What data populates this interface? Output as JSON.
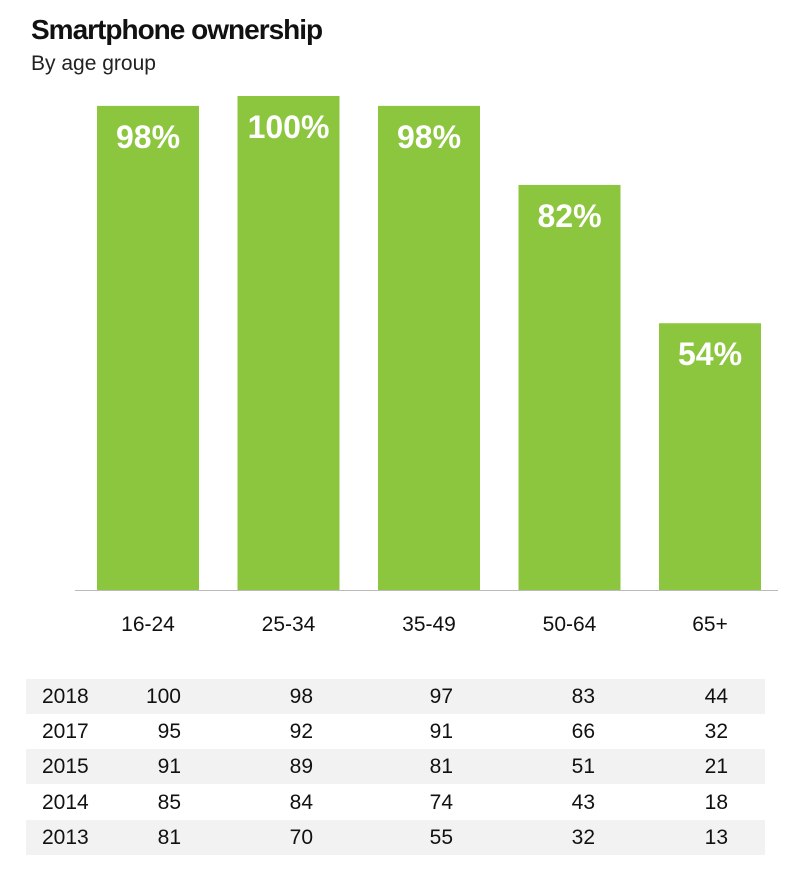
{
  "chart_data": {
    "type": "bar",
    "title": "Smartphone ownership",
    "subtitle": "By age group",
    "categories": [
      "16-24",
      "25-34",
      "35-49",
      "50-64",
      "65+"
    ],
    "values": [
      98,
      100,
      98,
      82,
      54
    ],
    "data_labels": [
      "98%",
      "100%",
      "98%",
      "82%",
      "54%"
    ],
    "ylim": [
      0,
      100
    ],
    "color": "#8cc63f",
    "table": {
      "rows": [
        {
          "year": "2018",
          "values": [
            "100",
            "98",
            "97",
            "83",
            "44"
          ]
        },
        {
          "year": "2017",
          "values": [
            "95",
            "92",
            "91",
            "66",
            "32"
          ]
        },
        {
          "year": "2015",
          "values": [
            "91",
            "89",
            "81",
            "51",
            "21"
          ]
        },
        {
          "year": "2014",
          "values": [
            "85",
            "84",
            "74",
            "43",
            "18"
          ]
        },
        {
          "year": "2013",
          "values": [
            "81",
            "70",
            "55",
            "32",
            "13"
          ]
        }
      ]
    }
  }
}
